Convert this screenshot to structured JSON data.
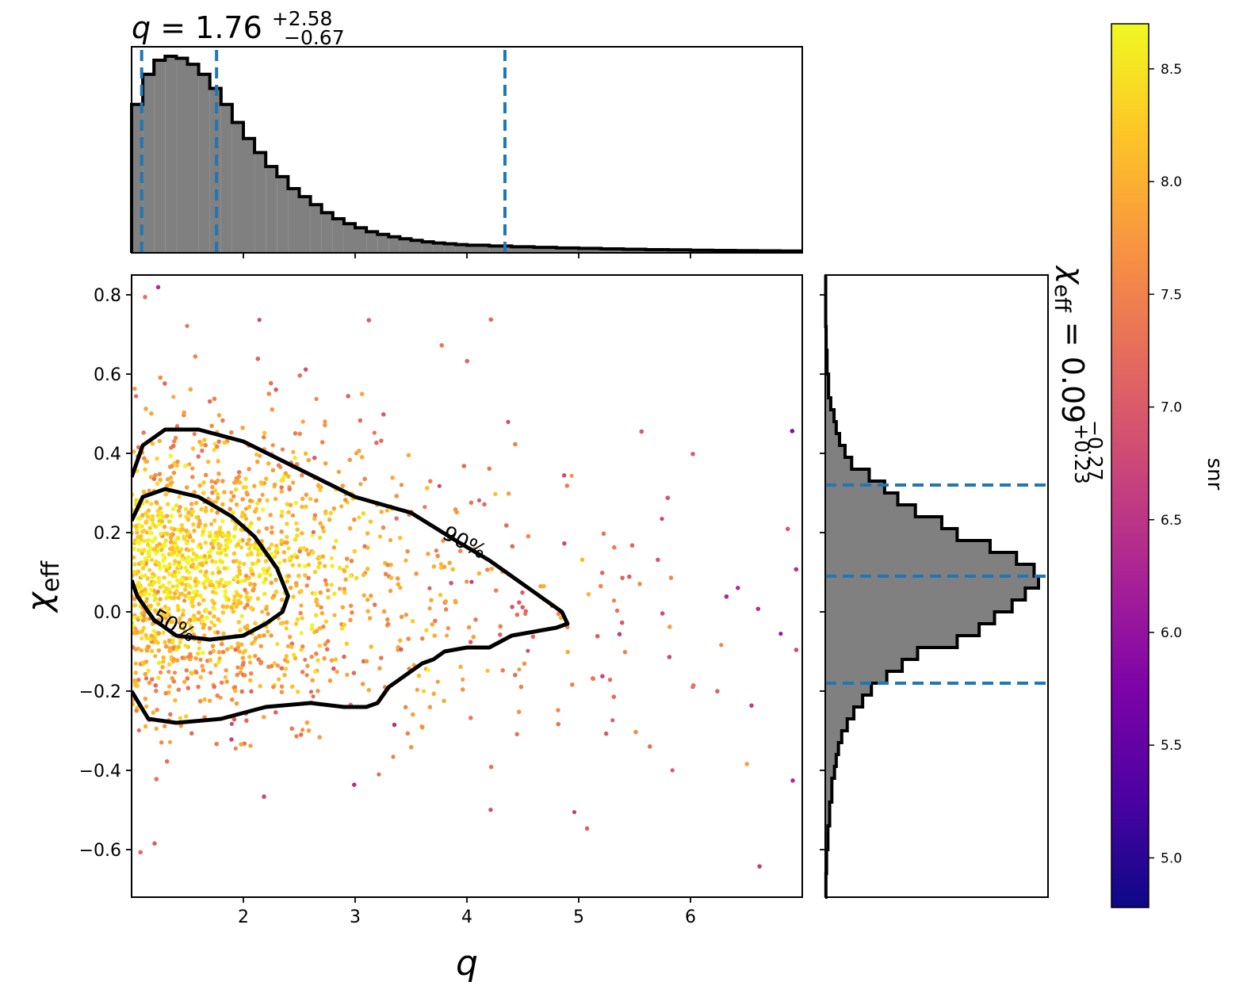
{
  "chart_data": {
    "type": "scatter",
    "colormap": "plasma",
    "main": {
      "xlabel": "q",
      "ylabel": "χ_eff",
      "xlim": [
        1.0,
        7.0
      ],
      "ylim": [
        -0.72,
        0.85
      ],
      "xticks": [
        2,
        3,
        4,
        5,
        6
      ],
      "xtick_labels": [
        "2",
        "3",
        "4",
        "5",
        "6"
      ],
      "yticks": [
        0.8,
        0.6,
        0.4,
        0.2,
        0.0,
        -0.2,
        -0.4,
        -0.6
      ],
      "ytick_labels": [
        "0.8",
        "0.6",
        "0.4",
        "0.2",
        "0.0",
        "−0.2",
        "−0.4",
        "−0.6"
      ],
      "contours": [
        {
          "label": "90%",
          "label_at": [
            3.95,
            0.16
          ],
          "points": [
            [
              1.0,
              0.34
            ],
            [
              1.1,
              0.42
            ],
            [
              1.3,
              0.46
            ],
            [
              1.6,
              0.46
            ],
            [
              2.0,
              0.43
            ],
            [
              2.5,
              0.36
            ],
            [
              3.0,
              0.29
            ],
            [
              3.5,
              0.25
            ],
            [
              3.9,
              0.18
            ],
            [
              4.2,
              0.13
            ],
            [
              4.5,
              0.07
            ],
            [
              4.7,
              0.03
            ],
            [
              4.85,
              0.0
            ],
            [
              4.9,
              -0.03
            ],
            [
              4.8,
              -0.04
            ],
            [
              4.6,
              -0.05
            ],
            [
              4.4,
              -0.06
            ],
            [
              4.2,
              -0.09
            ],
            [
              4.0,
              -0.09
            ],
            [
              3.8,
              -0.1
            ],
            [
              3.7,
              -0.12
            ],
            [
              3.6,
              -0.13
            ],
            [
              3.4,
              -0.17
            ],
            [
              3.3,
              -0.19
            ],
            [
              3.2,
              -0.23
            ],
            [
              3.1,
              -0.24
            ],
            [
              2.9,
              -0.24
            ],
            [
              2.6,
              -0.23
            ],
            [
              2.2,
              -0.24
            ],
            [
              1.8,
              -0.27
            ],
            [
              1.4,
              -0.28
            ],
            [
              1.15,
              -0.27
            ],
            [
              1.0,
              -0.2
            ]
          ]
        },
        {
          "label": "50%",
          "label_at": [
            1.35,
            -0.05
          ],
          "points": [
            [
              1.0,
              0.23
            ],
            [
              1.1,
              0.29
            ],
            [
              1.3,
              0.31
            ],
            [
              1.6,
              0.29
            ],
            [
              1.9,
              0.24
            ],
            [
              2.1,
              0.19
            ],
            [
              2.3,
              0.11
            ],
            [
              2.4,
              0.04
            ],
            [
              2.35,
              0.0
            ],
            [
              2.2,
              -0.03
            ],
            [
              2.0,
              -0.06
            ],
            [
              1.7,
              -0.07
            ],
            [
              1.4,
              -0.06
            ],
            [
              1.2,
              -0.02
            ],
            [
              1.05,
              0.04
            ],
            [
              1.0,
              0.08
            ]
          ]
        }
      ],
      "num_points_approx": 9000
    },
    "top_histogram": {
      "title_param": "q",
      "median": "1.76",
      "plus": "+2.58",
      "minus": "−0.67",
      "quantile_lines": [
        1.09,
        1.76,
        4.34
      ],
      "bin_edges": [
        1.0,
        1.1,
        1.2,
        1.3,
        1.4,
        1.5,
        1.6,
        1.7,
        1.8,
        1.9,
        2.0,
        2.1,
        2.2,
        2.3,
        2.4,
        2.5,
        2.6,
        2.7,
        2.8,
        2.9,
        3.0,
        3.1,
        3.2,
        3.3,
        3.4,
        3.5,
        3.6,
        3.7,
        3.8,
        3.9,
        4.0,
        4.2,
        4.4,
        4.6,
        4.8,
        5.0,
        5.2,
        5.4,
        5.6,
        5.8,
        6.0,
        6.2,
        6.4,
        6.6,
        6.8,
        7.0
      ],
      "densities": [
        0.74,
        0.89,
        0.96,
        0.98,
        0.97,
        0.94,
        0.89,
        0.82,
        0.74,
        0.65,
        0.57,
        0.5,
        0.43,
        0.38,
        0.32,
        0.28,
        0.24,
        0.2,
        0.17,
        0.145,
        0.125,
        0.105,
        0.092,
        0.08,
        0.07,
        0.062,
        0.055,
        0.049,
        0.045,
        0.041,
        0.038,
        0.034,
        0.03,
        0.027,
        0.024,
        0.022,
        0.02,
        0.018,
        0.016,
        0.015,
        0.013,
        0.012,
        0.011,
        0.01,
        0.009
      ]
    },
    "right_histogram": {
      "title_param": "χ_eff",
      "median": "0.09",
      "plus": "+0.23",
      "minus": "−0.27",
      "quantile_lines": [
        -0.18,
        0.09,
        0.32
      ],
      "bin_edges": [
        -0.72,
        -0.66,
        -0.6,
        -0.54,
        -0.48,
        -0.42,
        -0.39,
        -0.36,
        -0.33,
        -0.3,
        -0.27,
        -0.24,
        -0.21,
        -0.18,
        -0.15,
        -0.12,
        -0.09,
        -0.06,
        -0.03,
        0.0,
        0.03,
        0.06,
        0.09,
        0.12,
        0.15,
        0.18,
        0.21,
        0.24,
        0.27,
        0.3,
        0.33,
        0.36,
        0.39,
        0.42,
        0.45,
        0.48,
        0.51,
        0.54,
        0.6,
        0.66,
        0.72,
        0.85
      ],
      "densities": [
        0.003,
        0.006,
        0.012,
        0.02,
        0.03,
        0.042,
        0.05,
        0.06,
        0.075,
        0.1,
        0.13,
        0.17,
        0.21,
        0.28,
        0.35,
        0.42,
        0.6,
        0.7,
        0.77,
        0.85,
        0.91,
        0.97,
        0.95,
        0.87,
        0.75,
        0.6,
        0.53,
        0.41,
        0.33,
        0.27,
        0.2,
        0.12,
        0.09,
        0.065,
        0.05,
        0.04,
        0.025,
        0.015,
        0.008,
        0.004,
        0.002
      ]
    },
    "colorbar": {
      "label": "snr",
      "range": [
        4.78,
        8.7
      ],
      "ticks": [
        5.0,
        5.5,
        6.0,
        6.5,
        7.0,
        7.5,
        8.0,
        8.5
      ],
      "tick_labels": [
        "5.0",
        "5.5",
        "6.0",
        "6.5",
        "7.0",
        "7.5",
        "8.0",
        "8.5"
      ]
    }
  }
}
